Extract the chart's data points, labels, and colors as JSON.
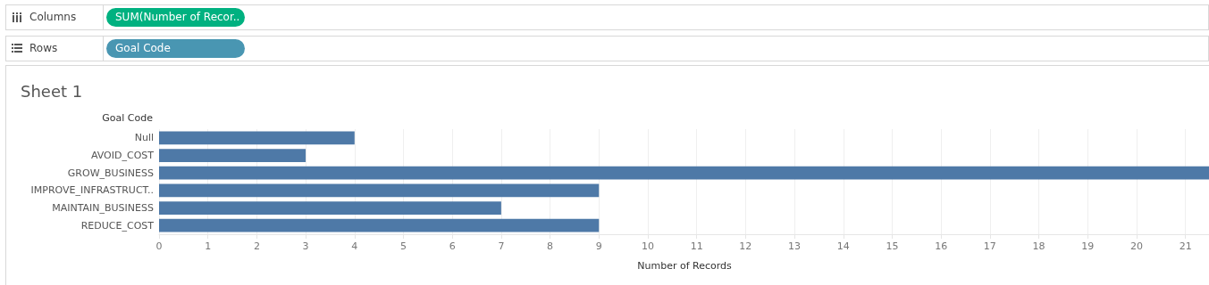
{
  "chart_data": {
    "type": "bar",
    "orientation": "horizontal",
    "title": "Sheet 1",
    "xlabel": "Number of Records",
    "ylabel": "Goal Code",
    "annotations": [
      "Columns",
      "SUM(Number of Recor..",
      "Rows",
      "Goal Code"
    ],
    "categories": [
      "Null",
      "AVOID_COST",
      "GROW_BUSINESS",
      "IMPROVE_INFRASTRUCT..",
      "MAINTAIN_BUSINESS",
      "REDUCE_COST"
    ],
    "values": [
      4,
      3,
      21.5,
      9,
      7,
      9
    ],
    "color": "#4e79a7",
    "xlim": [
      0,
      21.5
    ],
    "xticks": [
      0,
      1,
      2,
      3,
      4,
      5,
      6,
      7,
      8,
      9,
      10,
      11,
      12,
      13,
      14,
      15,
      16,
      17,
      18,
      19,
      20,
      21
    ],
    "grid": "x"
  }
}
